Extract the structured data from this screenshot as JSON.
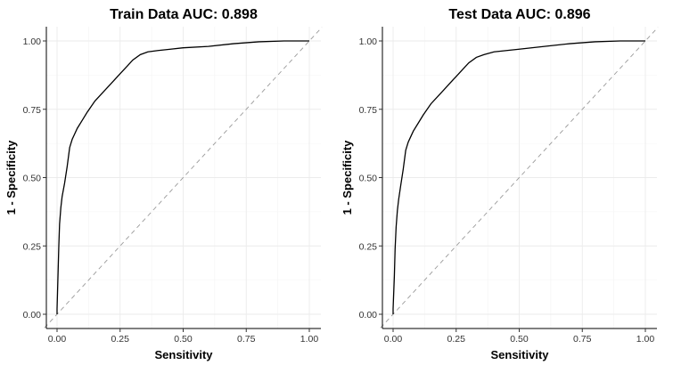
{
  "chart_data": [
    {
      "type": "line",
      "title": "Train Data AUC: 0.898",
      "xlabel": "Sensitivity",
      "ylabel": "1 - Specificity",
      "xlim": [
        0,
        1
      ],
      "ylim": [
        0,
        1
      ],
      "x_ticks": [
        "0.00",
        "0.25",
        "0.50",
        "0.75",
        "1.00"
      ],
      "y_ticks": [
        "0.00",
        "0.25",
        "0.50",
        "0.75",
        "1.00"
      ],
      "grid": true,
      "reference_line": {
        "style": "dashed",
        "from": [
          0,
          0
        ],
        "to": [
          1,
          1
        ]
      },
      "series": [
        {
          "x": [
            0.0,
            0.0,
            0.004,
            0.007,
            0.01,
            0.015,
            0.02,
            0.03,
            0.04,
            0.05,
            0.06,
            0.07,
            0.08,
            0.1,
            0.12,
            0.15,
            0.18,
            0.2,
            0.22,
            0.25,
            0.28,
            0.3,
            0.33,
            0.36,
            0.4,
            0.45,
            0.5,
            0.6,
            0.7,
            0.8,
            0.9,
            1.0
          ],
          "y": [
            0.0,
            0.02,
            0.15,
            0.25,
            0.33,
            0.39,
            0.43,
            0.48,
            0.54,
            0.61,
            0.64,
            0.66,
            0.68,
            0.71,
            0.74,
            0.78,
            0.81,
            0.83,
            0.85,
            0.88,
            0.91,
            0.93,
            0.95,
            0.96,
            0.965,
            0.97,
            0.975,
            0.98,
            0.99,
            0.997,
            1.0,
            1.0
          ]
        }
      ]
    },
    {
      "type": "line",
      "title": "Test Data AUC: 0.896",
      "xlabel": "Sensitivity",
      "ylabel": "1 - Specificity",
      "xlim": [
        0,
        1
      ],
      "ylim": [
        0,
        1
      ],
      "x_ticks": [
        "0.00",
        "0.25",
        "0.50",
        "0.75",
        "1.00"
      ],
      "y_ticks": [
        "0.00",
        "0.25",
        "0.50",
        "0.75",
        "1.00"
      ],
      "grid": true,
      "reference_line": {
        "style": "dashed",
        "from": [
          0,
          0
        ],
        "to": [
          1,
          1
        ]
      },
      "series": [
        {
          "x": [
            0.0,
            0.0,
            0.005,
            0.008,
            0.012,
            0.017,
            0.022,
            0.03,
            0.04,
            0.05,
            0.06,
            0.07,
            0.08,
            0.1,
            0.12,
            0.15,
            0.18,
            0.2,
            0.22,
            0.25,
            0.28,
            0.3,
            0.33,
            0.36,
            0.4,
            0.45,
            0.5,
            0.6,
            0.7,
            0.8,
            0.9,
            1.0
          ],
          "y": [
            0.0,
            0.02,
            0.14,
            0.24,
            0.32,
            0.38,
            0.42,
            0.47,
            0.53,
            0.6,
            0.63,
            0.65,
            0.67,
            0.7,
            0.73,
            0.77,
            0.8,
            0.82,
            0.84,
            0.87,
            0.9,
            0.92,
            0.94,
            0.95,
            0.96,
            0.965,
            0.97,
            0.98,
            0.99,
            0.997,
            1.0,
            1.0
          ]
        }
      ]
    }
  ]
}
